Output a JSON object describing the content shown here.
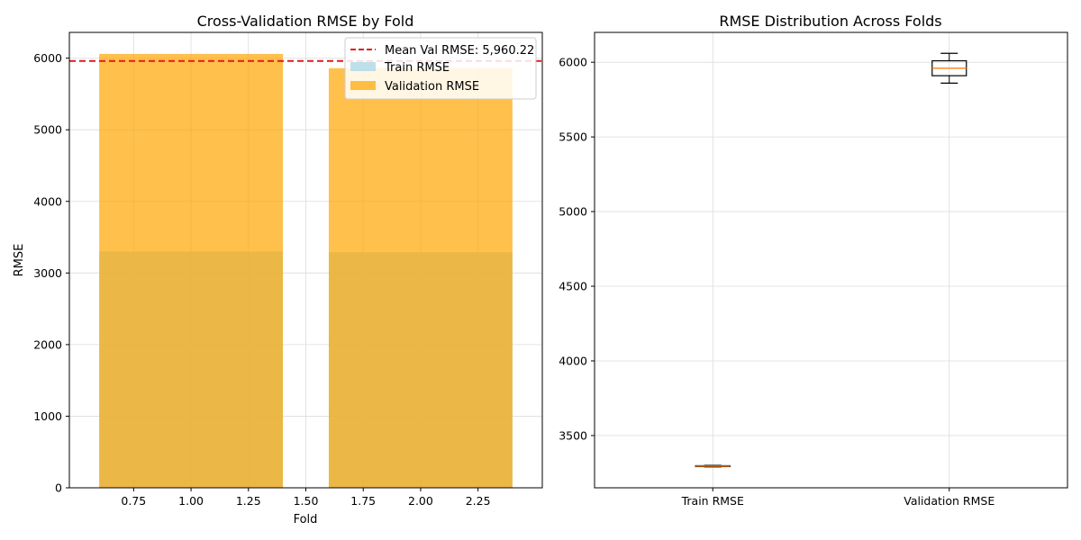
{
  "chart_data": [
    {
      "type": "bar",
      "title": "Cross-Validation RMSE by Fold",
      "xlabel": "Fold",
      "ylabel": "RMSE",
      "xlim": [
        0.47,
        2.53
      ],
      "ylim": [
        0,
        6360
      ],
      "xticks": [
        0.75,
        1.0,
        1.25,
        1.5,
        1.75,
        2.0,
        2.25
      ],
      "xtick_labels": [
        "0.75",
        "1.00",
        "1.25",
        "1.50",
        "1.75",
        "2.00",
        "2.25"
      ],
      "yticks": [
        0,
        1000,
        2000,
        3000,
        4000,
        5000,
        6000
      ],
      "ytick_labels": [
        "0",
        "1000",
        "2000",
        "3000",
        "4000",
        "5000",
        "6000"
      ],
      "categories": [
        1,
        2
      ],
      "bar_width": 0.8,
      "series": [
        {
          "name": "Train RMSE",
          "values": [
            3300,
            3290
          ],
          "color": "#add8e6"
        },
        {
          "name": "Validation RMSE",
          "values": [
            6060,
            5860
          ],
          "color": "#ffa500"
        }
      ],
      "mean_line": {
        "value": 5960.22,
        "label": "Mean Val RMSE: 5,960.22",
        "color": "#e31a1c",
        "style": "dashed"
      },
      "legend_position": "top-right",
      "grid": true
    },
    {
      "type": "box",
      "title": "RMSE Distribution Across Folds",
      "categories": [
        "Train RMSE",
        "Validation RMSE"
      ],
      "ylim": [
        3150,
        6200
      ],
      "yticks": [
        3500,
        4000,
        4500,
        5000,
        5500,
        6000
      ],
      "ytick_labels": [
        "3500",
        "4000",
        "4500",
        "5000",
        "5500",
        "6000"
      ],
      "boxes": [
        {
          "name": "Train RMSE",
          "min": 3290,
          "q1": 3292,
          "median": 3295,
          "q3": 3298,
          "max": 3300
        },
        {
          "name": "Validation RMSE",
          "min": 5860,
          "q1": 5910,
          "median": 5960,
          "q3": 6010,
          "max": 6060
        }
      ],
      "median_color": "#ff7f0e",
      "grid": true
    }
  ]
}
